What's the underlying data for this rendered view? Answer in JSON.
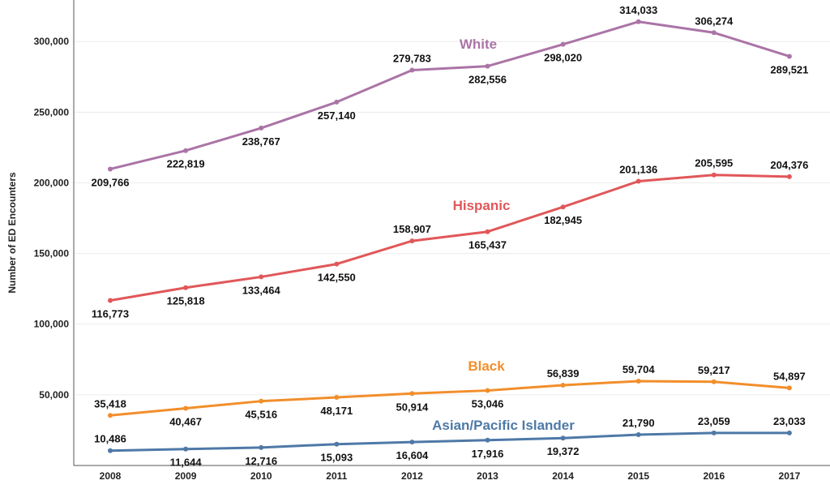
{
  "chart_data": {
    "type": "line",
    "ylabel": "Number of ED Encounters",
    "xlabel": "",
    "x": [
      "2008",
      "2009",
      "2010",
      "2011",
      "2012",
      "2013",
      "2014",
      "2015",
      "2016",
      "2017"
    ],
    "yticks": [
      50000,
      100000,
      150000,
      200000,
      250000,
      300000
    ],
    "ytick_labels": [
      "50,000",
      "100,000",
      "150,000",
      "200,000",
      "250,000",
      "300,000"
    ],
    "ylim": [
      0,
      317000
    ],
    "grid": true,
    "series": [
      {
        "name": "White",
        "color": "#ab74a6",
        "values": [
          209766,
          222819,
          238767,
          257140,
          279783,
          282556,
          298020,
          314033,
          306274,
          289521
        ],
        "labels": [
          "209,766",
          "222,819",
          "238,767",
          "257,140",
          "279,783",
          "282,556",
          "298,020",
          "314,033",
          "306,274",
          "289,521"
        ],
        "label_pos": [
          "below",
          "below",
          "below",
          "below",
          "above",
          "below",
          "below",
          "above",
          "above",
          "below"
        ]
      },
      {
        "name": "Hispanic",
        "color": "#e15759",
        "values": [
          116773,
          125818,
          133464,
          142550,
          158907,
          165437,
          182945,
          201136,
          205595,
          204376
        ],
        "labels": [
          "116,773",
          "125,818",
          "133,464",
          "142,550",
          "158,907",
          "165,437",
          "182,945",
          "201,136",
          "205,595",
          "204,376"
        ],
        "label_pos": [
          "below",
          "below",
          "below",
          "below",
          "above",
          "below",
          "below",
          "above",
          "above",
          "above"
        ]
      },
      {
        "name": "Black",
        "color": "#f28e2b",
        "values": [
          35418,
          40467,
          45516,
          48171,
          50914,
          53046,
          56839,
          59704,
          59217,
          54897
        ],
        "labels": [
          "35,418",
          "40,467",
          "45,516",
          "48,171",
          "50,914",
          "53,046",
          "56,839",
          "59,704",
          "59,217",
          "54,897"
        ],
        "label_pos": [
          "above",
          "below",
          "below",
          "below",
          "below",
          "below",
          "above",
          "above",
          "above",
          "above"
        ]
      },
      {
        "name": "Asian/Pacific Islander",
        "color": "#4e79a7",
        "values": [
          10486,
          11644,
          12716,
          15093,
          16604,
          17916,
          19372,
          21790,
          23059,
          23033
        ],
        "labels": [
          "10,486",
          "11,644",
          "12,716",
          "15,093",
          "16,604",
          "17,916",
          "19,372",
          "21,790",
          "23,059",
          "23,033"
        ],
        "label_pos": [
          "above",
          "below",
          "below",
          "below",
          "below",
          "below",
          "below",
          "above",
          "above",
          "above"
        ]
      }
    ]
  }
}
